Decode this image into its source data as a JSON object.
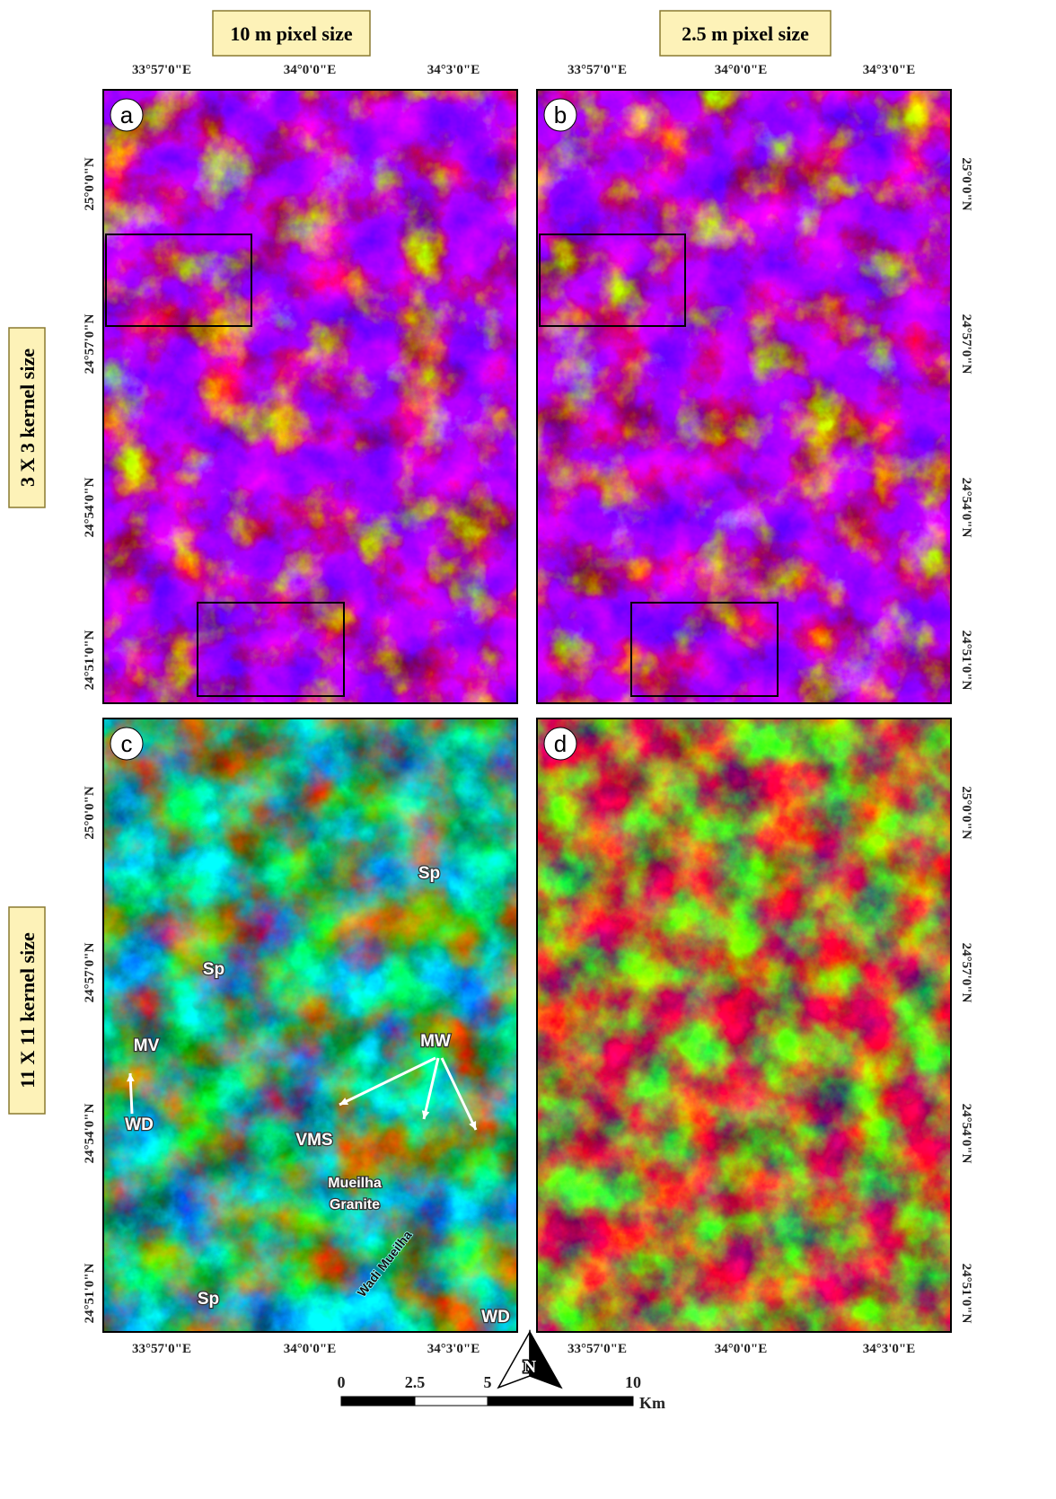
{
  "column_headers": [
    "10 m pixel size",
    "2.5 m pixel size"
  ],
  "row_headers": [
    "3 X 3 kernel size",
    "11 X 11 kernel size"
  ],
  "longitude_labels": [
    "33°57'0\"E",
    "34°0'0\"E",
    "34°3'0\"E"
  ],
  "latitude_labels": [
    "25°0'0\"N",
    "24°57'0\"N",
    "24°54'0\"N",
    "24°51'0\"N"
  ],
  "panels": [
    {
      "label": "a"
    },
    {
      "label": "b"
    },
    {
      "label": "c",
      "annotations": [
        "Sp",
        "Sp",
        "MV",
        "WD",
        "MW",
        "VMS",
        "Mueilha",
        "Granite",
        "Wadi Mueilha",
        "Sp",
        "WD"
      ]
    },
    {
      "label": "d"
    }
  ],
  "scale_bar": {
    "labels": [
      "0",
      "2.5",
      "5",
      "10"
    ],
    "unit": "Km"
  },
  "north_arrow": "N"
}
